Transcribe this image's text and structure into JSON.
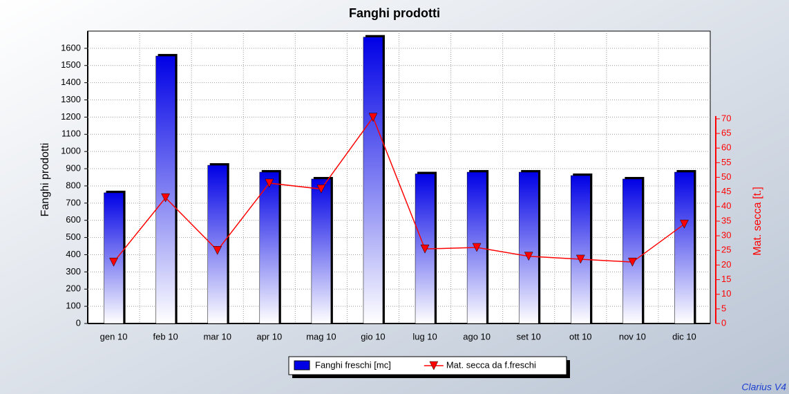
{
  "chart_data": {
    "type": "bar",
    "title": "Fanghi prodotti",
    "categories": [
      "gen 10",
      "feb 10",
      "mar 10",
      "apr 10",
      "mag 10",
      "gio 10",
      "lug 10",
      "ago 10",
      "set 10",
      "ott 10",
      "nov 10",
      "dic 10"
    ],
    "series": [
      {
        "name": "Fanghi freschi [mc]",
        "type": "bar",
        "color": "#0000e6",
        "values": [
          760,
          1555,
          920,
          880,
          840,
          1665,
          870,
          880,
          880,
          860,
          840,
          880
        ]
      },
      {
        "name": "Mat. secca da f.freschi",
        "type": "line",
        "axis": "y2",
        "color": "#ff0000",
        "values": [
          21,
          43,
          25,
          48,
          46,
          70.5,
          25.5,
          26,
          23,
          22,
          21,
          34
        ]
      }
    ],
    "ylabel": "Fanghi prodotti",
    "y2label": "Mat. secca [t.]",
    "ylim": [
      0,
      1700
    ],
    "yticks": [
      0,
      100,
      200,
      300,
      400,
      500,
      600,
      700,
      800,
      900,
      1000,
      1100,
      1200,
      1300,
      1400,
      1500,
      1600
    ],
    "y2lim": [
      0,
      100
    ],
    "y2ticks": [
      0,
      5,
      10,
      15,
      20,
      25,
      30,
      35,
      40,
      45,
      50,
      55,
      60,
      65,
      70
    ],
    "y2color": "#ff0000",
    "grid": true,
    "legend": "bottom",
    "watermark": "Clarius V4"
  }
}
